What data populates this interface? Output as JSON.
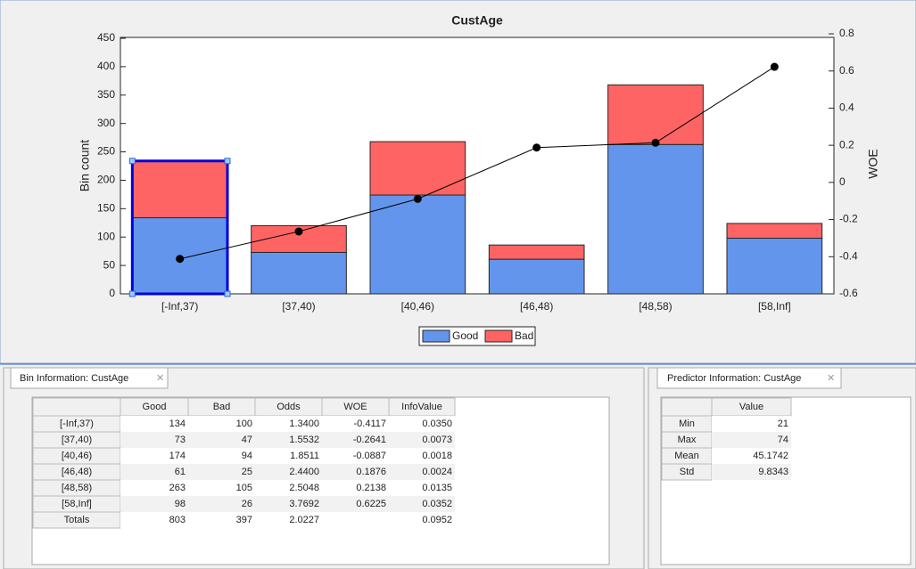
{
  "chart_data": {
    "type": "bar",
    "stacked": true,
    "title": "CustAge",
    "ylabel": "Bin count",
    "y2label": "WOE",
    "categories": [
      "[-Inf,37)",
      "[37,40)",
      "[40,46)",
      "[46,48)",
      "[48,58)",
      "[58,Inf]"
    ],
    "series": [
      {
        "name": "Good",
        "color": "#6495ed",
        "values": [
          134,
          73,
          174,
          61,
          263,
          98
        ]
      },
      {
        "name": "Bad",
        "color": "#ff6464",
        "values": [
          100,
          47,
          94,
          25,
          105,
          26
        ]
      },
      {
        "type": "line",
        "axis": "y2",
        "color": "#000000",
        "values": [
          -0.4117,
          -0.2641,
          -0.0887,
          0.1876,
          0.2138,
          0.6225
        ]
      }
    ],
    "ylim": [
      0,
      450
    ],
    "yticks": [
      0,
      50,
      100,
      150,
      200,
      250,
      300,
      350,
      400,
      450
    ],
    "y2lim": [
      -0.6,
      0.8
    ],
    "y2ticks": [
      -0.6,
      -0.4,
      -0.2,
      0,
      0.2,
      0.4,
      0.6,
      0.8
    ],
    "grid": false,
    "legend": "bottom"
  },
  "bin_panel": {
    "tab": "Bin Information: CustAge",
    "columns": [
      "Good",
      "Bad",
      "Odds",
      "WOE",
      "InfoValue"
    ],
    "rows": [
      [
        "[-Inf,37)",
        "134",
        "100",
        "1.3400",
        "-0.4117",
        "0.0350"
      ],
      [
        "[37,40)",
        "73",
        "47",
        "1.5532",
        "-0.2641",
        "0.0073"
      ],
      [
        "[40,46)",
        "174",
        "94",
        "1.8511",
        "-0.0887",
        "0.0018"
      ],
      [
        "[46,48)",
        "61",
        "25",
        "2.4400",
        "0.1876",
        "0.0024"
      ],
      [
        "[48,58)",
        "263",
        "105",
        "2.5048",
        "0.2138",
        "0.0135"
      ],
      [
        "[58,Inf]",
        "98",
        "26",
        "3.7692",
        "0.6225",
        "0.0352"
      ],
      [
        "Totals",
        "803",
        "397",
        "2.0227",
        null,
        "0.0952"
      ]
    ]
  },
  "predictor_panel": {
    "tab": "Predictor Information: CustAge",
    "columns": [
      "Value"
    ],
    "rows": [
      [
        "Min",
        "21"
      ],
      [
        "Max",
        "74"
      ],
      [
        "Mean",
        "45.1742"
      ],
      [
        "Std",
        "9.8343"
      ]
    ]
  }
}
